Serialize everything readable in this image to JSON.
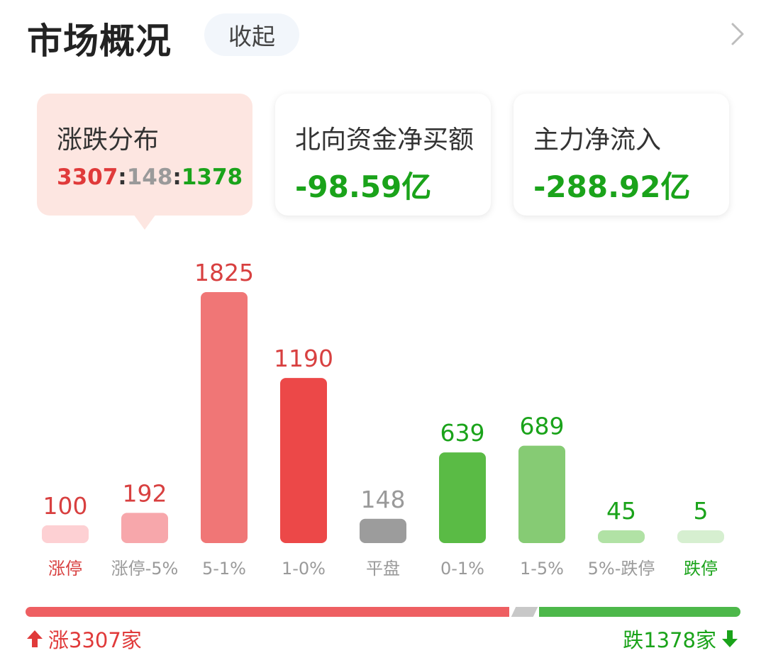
{
  "header": {
    "title": "市场概况",
    "collapse_label": "收起"
  },
  "cards": [
    {
      "label": "涨跌分布",
      "ratio": {
        "up": "3307",
        "flat": "148",
        "down": "1378",
        "sep": ":"
      }
    },
    {
      "label": "北向资金净买额",
      "value": "-98.59亿"
    },
    {
      "label": "主力净流入",
      "value": "-288.92亿"
    }
  ],
  "chart_data": {
    "type": "bar",
    "categories": [
      "涨停",
      "涨停-5%",
      "5-1%",
      "1-0%",
      "平盘",
      "0-1%",
      "1-5%",
      "5%-跌停",
      "跌停"
    ],
    "values": [
      100,
      192,
      1825,
      1190,
      148,
      639,
      689,
      45,
      5
    ],
    "bar_colors": [
      "#fdd0d3",
      "#f7a7ab",
      "#f07676",
      "#ec4848",
      "#9c9c9c",
      "#5abb45",
      "#86cb74",
      "#b1e2a5",
      "#d6efd0"
    ],
    "label_colors": [
      "#d84040",
      "#d84040",
      "#d84040",
      "#d84040",
      "#9a9a9a",
      "#1aa31a",
      "#1aa31a",
      "#1aa31a",
      "#1aa31a"
    ],
    "category_colors": [
      "#d84040",
      "#9a9a9a",
      "#9a9a9a",
      "#9a9a9a",
      "#9a9a9a",
      "#9a9a9a",
      "#9a9a9a",
      "#9a9a9a",
      "#1aa31a"
    ]
  },
  "breadth": {
    "up_label": "涨3307家",
    "down_label": "跌1378家",
    "up_count": 3307,
    "flat_count": 148,
    "down_count": 1378,
    "up_color": "#ee5f62",
    "flat_color": "#c8c8c8",
    "down_color": "#4db84a"
  }
}
